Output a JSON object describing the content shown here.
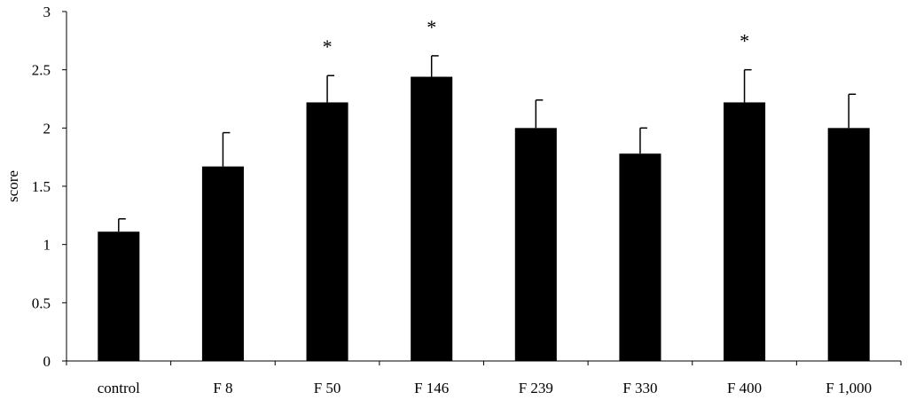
{
  "chart_data": {
    "type": "bar",
    "title": "",
    "xlabel": "",
    "ylabel": "score",
    "ylim": [
      0,
      3
    ],
    "yticks": [
      "0",
      "0.5",
      "1",
      "1.5",
      "2",
      "2.5",
      "3"
    ],
    "grid": false,
    "legend": "none",
    "bar_color": "#000000",
    "categories": [
      "control",
      "F 8",
      "F 50",
      "F 146",
      "F 239",
      "F 330",
      "F 400",
      "F 1,000"
    ],
    "values": [
      1.11,
      1.67,
      2.22,
      2.44,
      2.0,
      1.78,
      2.22,
      2.0
    ],
    "error_bars": [
      0.11,
      0.29,
      0.23,
      0.18,
      0.24,
      0.22,
      0.28,
      0.29
    ],
    "significance": [
      "",
      "",
      "*",
      "*",
      "",
      "",
      "*",
      ""
    ]
  }
}
